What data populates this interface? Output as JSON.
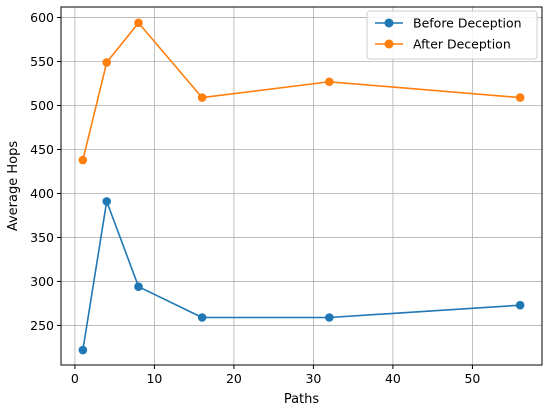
{
  "chart_data": {
    "type": "line",
    "title": "",
    "xlabel": "Paths",
    "ylabel": "Average Hops",
    "xlim": [
      -1.75,
      58.75
    ],
    "ylim": [
      205,
      612
    ],
    "x_ticks": [
      0,
      10,
      20,
      30,
      40,
      50
    ],
    "y_ticks": [
      250,
      300,
      350,
      400,
      450,
      500,
      550,
      600
    ],
    "grid": true,
    "legend_position": "top-right",
    "series": [
      {
        "name": "Before Deception",
        "color": "#1f77b4",
        "x": [
          1,
          4,
          8,
          16,
          32,
          56
        ],
        "values": [
          222,
          391,
          294,
          259,
          259,
          273
        ]
      },
      {
        "name": "After Deception",
        "color": "#ff7f0e",
        "x": [
          1,
          4,
          8,
          16,
          32,
          56
        ],
        "values": [
          438,
          549,
          594,
          509,
          527,
          509
        ]
      }
    ]
  }
}
